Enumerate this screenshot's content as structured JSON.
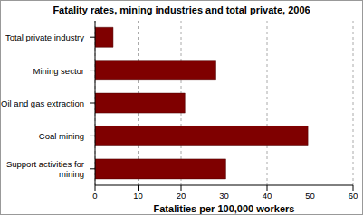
{
  "chart_data": {
    "type": "bar",
    "orientation": "horizontal",
    "title": "Fatality rates, mining industries and total private, 2006",
    "categories": [
      "Total private industry",
      "Mining sector",
      "Oil and gas extraction",
      "Coal mining",
      "Support activities for mining"
    ],
    "values": [
      4.2,
      28.1,
      20.9,
      49.5,
      30.4
    ],
    "color": "#7f0000",
    "xlabel": "Fatalities per 100,000 workers",
    "xlim": [
      0,
      60
    ],
    "xticks": [
      0,
      10,
      20,
      30,
      40,
      50,
      60
    ],
    "grid": true
  }
}
